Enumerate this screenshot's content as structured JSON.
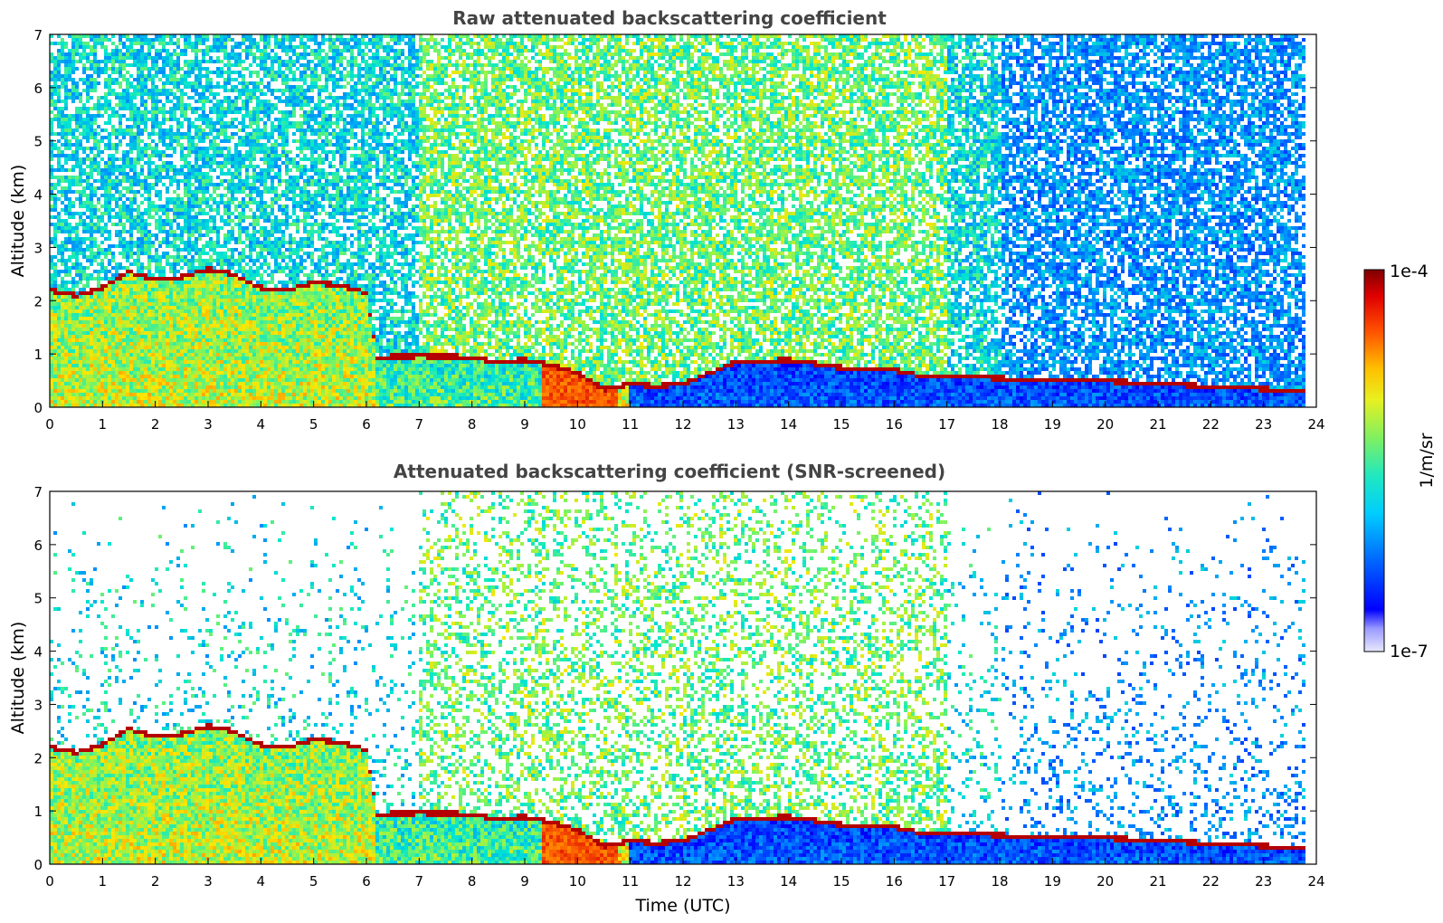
{
  "chart_data": [
    {
      "type": "heatmap",
      "title": "Raw attenuated backscattering coefficient",
      "xlabel": "",
      "ylabel": "Altitude (km)",
      "xlim": [
        0,
        24
      ],
      "ylim": [
        0,
        7
      ],
      "xticks": [
        0,
        1,
        2,
        3,
        4,
        5,
        6,
        7,
        8,
        9,
        10,
        11,
        12,
        13,
        14,
        15,
        16,
        17,
        18,
        19,
        20,
        21,
        22,
        23,
        24
      ],
      "yticks": [
        0,
        1,
        2,
        3,
        4,
        5,
        6,
        7
      ],
      "screened": false
    },
    {
      "type": "heatmap",
      "title": "Attenuated backscattering coefficient (SNR-screened)",
      "xlabel": "Time (UTC)",
      "ylabel": "Altitude (km)",
      "xlim": [
        0,
        24
      ],
      "ylim": [
        0,
        7
      ],
      "xticks": [
        0,
        1,
        2,
        3,
        4,
        5,
        6,
        7,
        8,
        9,
        10,
        11,
        12,
        13,
        14,
        15,
        16,
        17,
        18,
        19,
        20,
        21,
        22,
        23,
        24
      ],
      "yticks": [
        0,
        1,
        2,
        3,
        4,
        5,
        6,
        7
      ],
      "screened": true
    }
  ],
  "colorbar": {
    "label": "1/m/sr",
    "max_label": "1e-4",
    "min_label": "1e-7",
    "scale": "log",
    "range": [
      1e-07,
      0.0001
    ],
    "colormap": "jet"
  },
  "layer_top_km": [
    [
      0,
      2.15
    ],
    [
      0.5,
      2.05
    ],
    [
      1,
      2.2
    ],
    [
      1.5,
      2.5
    ],
    [
      2,
      2.35
    ],
    [
      2.5,
      2.4
    ],
    [
      3,
      2.55
    ],
    [
      3.5,
      2.45
    ],
    [
      4,
      2.2
    ],
    [
      4.5,
      2.15
    ],
    [
      5,
      2.3
    ],
    [
      5.5,
      2.25
    ],
    [
      6,
      2.1
    ],
    [
      6.2,
      0.9
    ],
    [
      7,
      0.92
    ],
    [
      8,
      0.9
    ],
    [
      8.5,
      0.8
    ],
    [
      9,
      0.85
    ],
    [
      9.5,
      0.75
    ],
    [
      10,
      0.6
    ],
    [
      10.5,
      0.3
    ],
    [
      11,
      0.4
    ],
    [
      11.5,
      0.35
    ],
    [
      12,
      0.4
    ],
    [
      13,
      0.8
    ],
    [
      14,
      0.85
    ],
    [
      15,
      0.7
    ],
    [
      16,
      0.65
    ],
    [
      16.5,
      0.55
    ],
    [
      17,
      0.55
    ],
    [
      18,
      0.5
    ],
    [
      20,
      0.45
    ],
    [
      22,
      0.35
    ],
    [
      23,
      0.3
    ],
    [
      23.8,
      0.25
    ]
  ]
}
